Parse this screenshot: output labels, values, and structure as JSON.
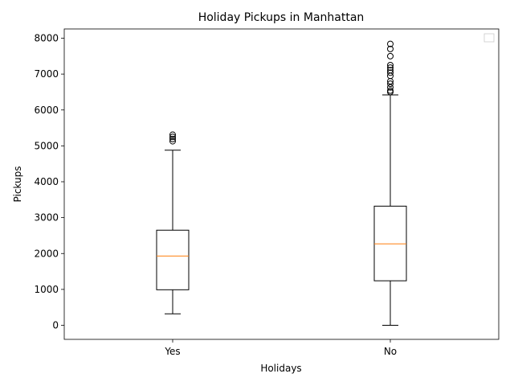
{
  "chart_data": {
    "type": "box",
    "title": "Holiday Pickups in Manhattan",
    "xlabel": "Holidays",
    "ylabel": "Pickups",
    "categories": [
      "Yes",
      "No"
    ],
    "ylim": [
      -400,
      8350
    ],
    "yticks": [
      0,
      1000,
      2000,
      3000,
      4000,
      5000,
      6000,
      7000,
      8000
    ],
    "ytick_labels": [
      "0",
      "1000",
      "2000",
      "3000",
      "4000",
      "5000",
      "6000",
      "7000",
      "8000"
    ],
    "grid": false,
    "legend": "top-right (empty)",
    "boxes": [
      {
        "category": "Yes",
        "whisker_low": 320,
        "q1": 990,
        "median": 1930,
        "q3": 2650,
        "whisker_high": 4880,
        "outliers": [
          5130,
          5190,
          5250,
          5310
        ]
      },
      {
        "category": "No",
        "whisker_low": 0,
        "q1": 1240,
        "median": 2270,
        "q3": 3320,
        "whisker_high": 6420,
        "outliers": [
          6500,
          6540,
          6630,
          6730,
          6800,
          6950,
          7040,
          7110,
          7180,
          7250,
          7500,
          7700,
          7840
        ]
      }
    ],
    "colors": {
      "box": "#000000",
      "median": "#ff7f0e",
      "outlier": "#000000",
      "background": "#ffffff"
    }
  }
}
